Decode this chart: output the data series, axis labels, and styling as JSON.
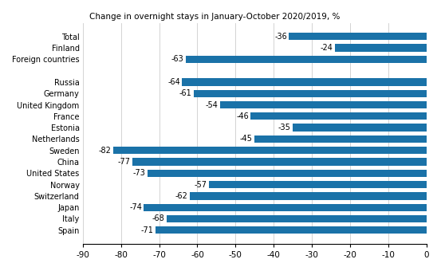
{
  "categories": [
    "Total",
    "Finland",
    "Foreign countries",
    "",
    "Russia",
    "Germany",
    "United Kingdom",
    "France",
    "Estonia",
    "Netherlands",
    "Sweden",
    "China",
    "United States",
    "Norway",
    "Switzerland",
    "Japan",
    "Italy",
    "Spain"
  ],
  "values": [
    -36,
    -24,
    -63,
    null,
    -64,
    -61,
    -54,
    -46,
    -35,
    -45,
    -82,
    -77,
    -73,
    -57,
    -62,
    -74,
    -68,
    -71
  ],
  "bar_color": "#1a72a8",
  "xlim": [
    -90,
    0
  ],
  "xticks": [
    -90,
    -80,
    -70,
    -60,
    -50,
    -40,
    -30,
    -20,
    -10,
    0
  ],
  "title": "Change in overnight stays in January-October 2020/2019, %",
  "title_fontsize": 7.5,
  "label_fontsize": 7.0,
  "tick_fontsize": 7.5,
  "figsize": [
    5.53,
    3.4
  ],
  "dpi": 100,
  "bar_height": 0.65
}
